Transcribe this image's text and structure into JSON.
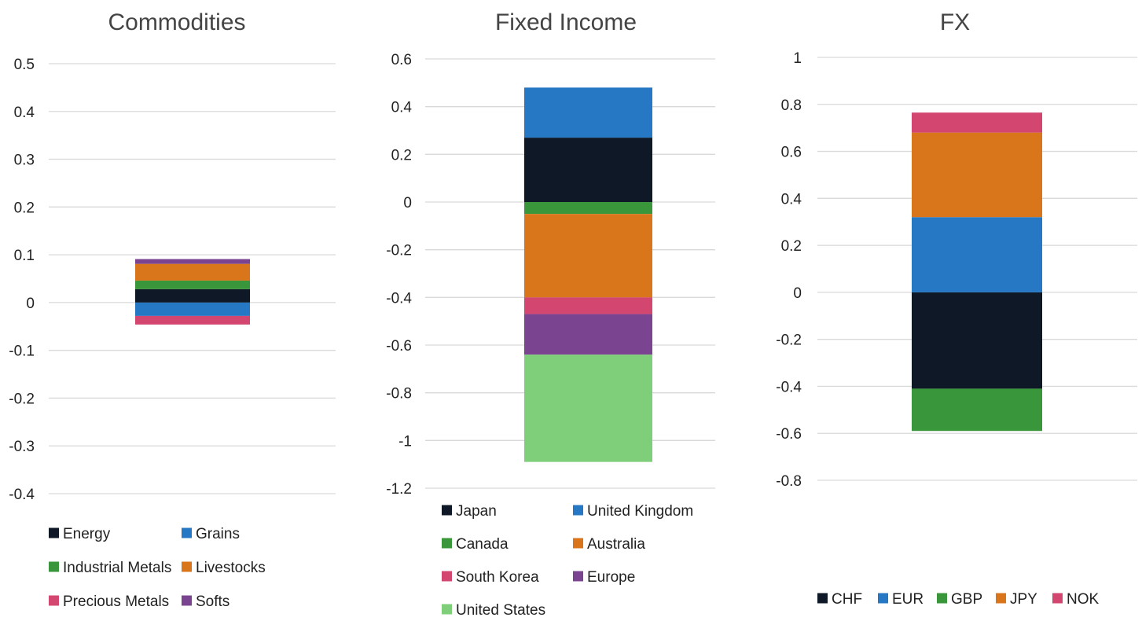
{
  "chart_data": [
    {
      "type": "bar",
      "stacked": true,
      "title": "Commodities",
      "categories": [
        ""
      ],
      "ylim": [
        -0.4,
        0.5
      ],
      "yticks": [
        "0.5",
        "0.4",
        "0.3",
        "0.2",
        "0.1",
        "0",
        "-0.1",
        "-0.2",
        "-0.3",
        "-0.4"
      ],
      "grid": true,
      "legend_position": "bottom",
      "series": [
        {
          "name": "Energy",
          "values": [
            0.028
          ],
          "color": "#0e1826"
        },
        {
          "name": "Grains",
          "values": [
            -0.028
          ],
          "color": "#2678c4"
        },
        {
          "name": "Industrial Metals",
          "values": [
            0.018
          ],
          "color": "#3a963b"
        },
        {
          "name": "Livestocks",
          "values": [
            0.035
          ],
          "color": "#d9761b"
        },
        {
          "name": "Precious Metals",
          "values": [
            -0.018
          ],
          "color": "#d2466f"
        },
        {
          "name": "Softs",
          "values": [
            0.01
          ],
          "color": "#7b4490"
        }
      ]
    },
    {
      "type": "bar",
      "stacked": true,
      "title": "Fixed Income",
      "categories": [
        ""
      ],
      "ylim": [
        -1.2,
        0.6
      ],
      "yticks": [
        "0.6",
        "0.4",
        "0.2",
        "0",
        "-0.2",
        "-0.4",
        "-0.6",
        "-0.8",
        "-1",
        "-1.2"
      ],
      "grid": true,
      "legend_position": "bottom",
      "series": [
        {
          "name": "Japan",
          "values": [
            0.27
          ],
          "color": "#0e1826"
        },
        {
          "name": "United Kingdom",
          "values": [
            0.21
          ],
          "color": "#2678c4"
        },
        {
          "name": "Canada",
          "values": [
            -0.05
          ],
          "color": "#3a963b"
        },
        {
          "name": "Australia",
          "values": [
            -0.35
          ],
          "color": "#d9761b"
        },
        {
          "name": "South Korea",
          "values": [
            -0.07
          ],
          "color": "#d2466f"
        },
        {
          "name": "Europe",
          "values": [
            -0.17
          ],
          "color": "#7b4490"
        },
        {
          "name": "United States",
          "values": [
            -0.45
          ],
          "color": "#7fcf7a"
        }
      ]
    },
    {
      "type": "bar",
      "stacked": true,
      "title": "FX",
      "categories": [
        ""
      ],
      "ylim": [
        -0.8,
        1.0
      ],
      "yticks": [
        "1",
        "0.8",
        "0.6",
        "0.4",
        "0.2",
        "0",
        "-0.2",
        "-0.4",
        "-0.6",
        "-0.8"
      ],
      "grid": true,
      "legend_position": "bottom",
      "series": [
        {
          "name": "CHF",
          "values": [
            -0.41
          ],
          "color": "#0e1826"
        },
        {
          "name": "EUR",
          "values": [
            0.32
          ],
          "color": "#2678c4"
        },
        {
          "name": "GBP",
          "values": [
            -0.18
          ],
          "color": "#3a963b"
        },
        {
          "name": "JPY",
          "values": [
            0.36
          ],
          "color": "#d9761b"
        },
        {
          "name": "NOK",
          "values": [
            0.085
          ],
          "color": "#d2466f"
        }
      ]
    }
  ]
}
